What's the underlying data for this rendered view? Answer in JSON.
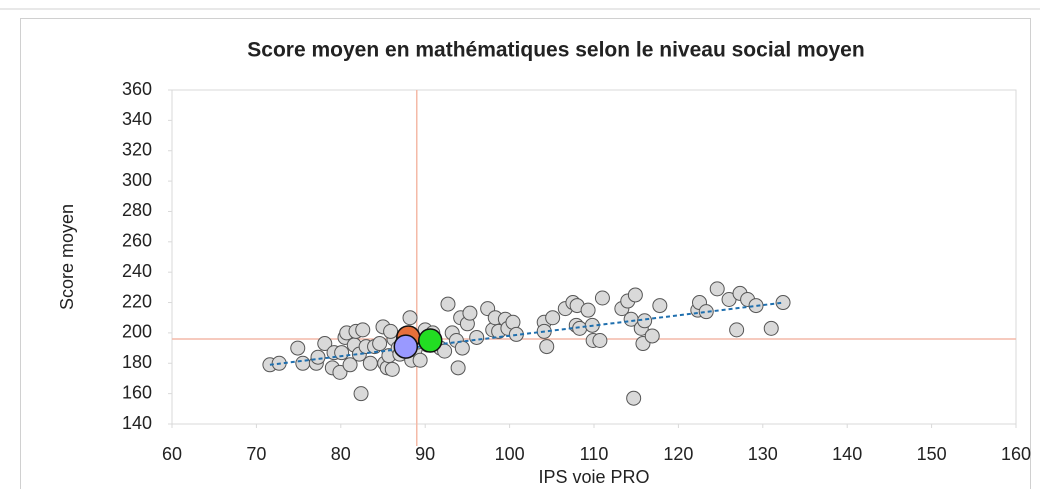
{
  "chart_data": {
    "type": "scatter",
    "title": "Score moyen en mathématiques selon le niveau social moyen",
    "x_label": "IPS voie PRO",
    "y_label": "Score moyen",
    "xlim": [
      60,
      160
    ],
    "xticks": [
      60,
      70,
      80,
      90,
      100,
      110,
      120,
      130,
      140,
      150,
      160
    ],
    "ylim": [
      140,
      360
    ],
    "yticks": [
      140,
      160,
      180,
      200,
      220,
      240,
      260,
      280,
      300,
      320,
      340,
      360
    ],
    "reference_x": 89,
    "reference_y": 196,
    "reference_color": "#f4b9a8",
    "trendline": {
      "x": [
        71.6,
        132.5
      ],
      "y": [
        179,
        220
      ],
      "color": "#1f6fae"
    },
    "series": [
      {
        "color": "#d9d9d9",
        "x": [
          71.6,
          72.7,
          74.9,
          75.5,
          77.1,
          77.3,
          78.1,
          79,
          79.2,
          79.9,
          80.1,
          80.5,
          80.7,
          81.1,
          81.6,
          81.8,
          82.2,
          82.4,
          82.6,
          83,
          83.5,
          84,
          84.6,
          85,
          85.2,
          85.5,
          85.7,
          86.1,
          86.3,
          85.9,
          86.8,
          87,
          87.4,
          88.2,
          88.4,
          88.8,
          89.1,
          89.4,
          90,
          90.3,
          90.9,
          91.8,
          92.3,
          92.7,
          93.2,
          93.7,
          93.9,
          94.2,
          94.4,
          95,
          95.3,
          96.1,
          97.4,
          98,
          98.3,
          98.7,
          99.5,
          99.8,
          100.4,
          100.8,
          104.1,
          104.1,
          104.4,
          105.1,
          106.6,
          107.9,
          107.5,
          108,
          108.3,
          109.3,
          109.8,
          109.9,
          110.7,
          111,
          113.3,
          114,
          114.4,
          114.9,
          115.6,
          115.8,
          116,
          116.9,
          117.8,
          114.7,
          122.3,
          122.5,
          123.3,
          124.6,
          126,
          126.9,
          127.3,
          128.2,
          129.2,
          131,
          132.4
        ],
        "y": [
          179,
          180,
          190,
          180,
          180,
          184,
          193,
          177,
          187,
          174,
          187,
          197,
          200,
          179,
          192,
          201,
          186,
          160,
          202,
          191,
          180,
          191,
          193,
          204,
          180,
          177,
          185,
          176,
          196,
          201,
          190,
          186,
          195,
          210,
          182,
          189,
          194,
          182,
          202,
          192,
          200,
          190,
          188,
          219,
          200,
          195,
          177,
          210,
          190,
          206,
          213,
          197,
          216,
          202,
          210,
          201,
          209,
          203,
          207,
          199,
          207,
          201,
          191,
          210,
          216,
          205,
          220,
          218,
          203,
          215,
          205,
          195,
          195,
          223,
          216,
          221,
          209,
          225,
          203,
          193,
          208,
          198,
          218,
          157,
          215,
          220,
          214,
          229,
          222,
          202,
          226,
          222,
          218,
          203,
          220
        ]
      },
      {
        "color": "#e8703a",
        "x": [
          88.0
        ],
        "y": [
          197
        ]
      },
      {
        "color": "#22dd22",
        "x": [
          90.6
        ],
        "y": [
          195
        ]
      },
      {
        "color": "#9999ff",
        "x": [
          87.7
        ],
        "y": [
          191
        ]
      }
    ]
  }
}
